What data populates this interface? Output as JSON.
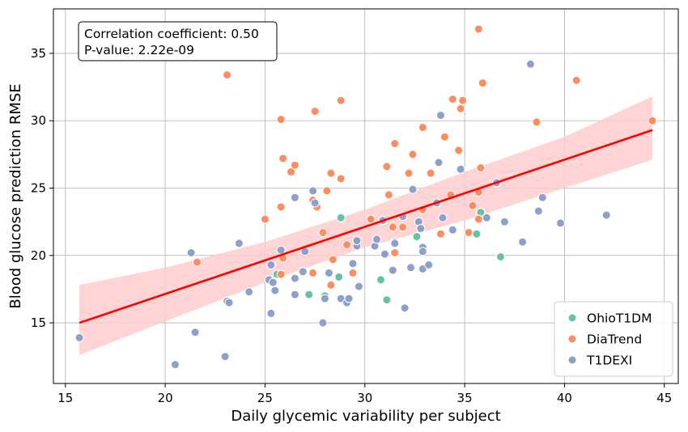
{
  "chart_data": {
    "type": "scatter",
    "xlabel": "Daily glycemic variability per subject",
    "ylabel": "Blood glucose prediction RMSE",
    "xlim": [
      14.4,
      45.7
    ],
    "ylim": [
      10.5,
      38.3
    ],
    "xticks": [
      15,
      20,
      25,
      30,
      35,
      40,
      45
    ],
    "yticks": [
      15,
      20,
      25,
      30,
      35
    ],
    "grid": true,
    "annotation": {
      "lines": [
        "Correlation coefficient: 0.50",
        "P-value: 2.22e-09"
      ],
      "placement": "top-left"
    },
    "legend": {
      "placement": "bottom-right"
    },
    "regression": {
      "color": "#ff0000",
      "ci_color": "#ffcccc",
      "line": [
        [
          15.7,
          15.0
        ],
        [
          44.4,
          29.3
        ]
      ],
      "ci_upper": [
        [
          15.7,
          17.8
        ],
        [
          20,
          19.1
        ],
        [
          25,
          21.0
        ],
        [
          30,
          23.4
        ],
        [
          35,
          26.2
        ],
        [
          40,
          28.8
        ],
        [
          44.4,
          31.8
        ]
      ],
      "ci_lower": [
        [
          15.7,
          12.6
        ],
        [
          20,
          15.1
        ],
        [
          25,
          18.0
        ],
        [
          30,
          20.6
        ],
        [
          35,
          22.6
        ],
        [
          40,
          25.0
        ],
        [
          44.4,
          27.1
        ]
      ]
    },
    "series": [
      {
        "name": "OhioT1DM",
        "color": "#66c2a5",
        "points": [
          [
            25.6,
            18.6
          ],
          [
            27.2,
            17.1
          ],
          [
            28.0,
            17.0
          ],
          [
            28.8,
            22.8
          ],
          [
            28.7,
            18.4
          ],
          [
            30.8,
            18.2
          ],
          [
            31.1,
            16.7
          ],
          [
            31.5,
            21.0
          ],
          [
            32.6,
            21.4
          ],
          [
            35.6,
            21.6
          ],
          [
            35.8,
            23.2
          ],
          [
            36.8,
            19.9
          ]
        ]
      },
      {
        "name": "DiaTrend",
        "color": "#fc8d62",
        "points": [
          [
            21.6,
            19.5
          ],
          [
            23.1,
            33.4
          ],
          [
            25.0,
            22.7
          ],
          [
            25.8,
            23.6
          ],
          [
            25.8,
            30.1
          ],
          [
            25.9,
            27.2
          ],
          [
            26.3,
            26.2
          ],
          [
            26.5,
            26.7
          ],
          [
            25.9,
            19.8
          ],
          [
            27.4,
            24.1
          ],
          [
            27.5,
            30.7
          ],
          [
            27.6,
            23.6
          ],
          [
            27.9,
            21.7
          ],
          [
            28.1,
            24.8
          ],
          [
            28.3,
            26.1
          ],
          [
            28.8,
            25.7
          ],
          [
            28.8,
            31.5
          ],
          [
            28.4,
            19.7
          ],
          [
            29.1,
            20.8
          ],
          [
            29.4,
            18.7
          ],
          [
            28.3,
            17.8
          ],
          [
            27.4,
            18.7
          ],
          [
            30.3,
            22.7
          ],
          [
            31.1,
            26.6
          ],
          [
            31.2,
            24.5
          ],
          [
            31.5,
            28.3
          ],
          [
            31.5,
            20.2
          ],
          [
            31.4,
            22.1
          ],
          [
            31.9,
            22.1
          ],
          [
            32.2,
            26.1
          ],
          [
            32.4,
            27.5
          ],
          [
            32.9,
            29.5
          ],
          [
            32.9,
            23.4
          ],
          [
            33.3,
            26.1
          ],
          [
            33.6,
            23.9
          ],
          [
            33.8,
            21.6
          ],
          [
            34.0,
            28.8
          ],
          [
            34.3,
            24.5
          ],
          [
            34.4,
            31.6
          ],
          [
            34.7,
            27.8
          ],
          [
            34.9,
            31.5
          ],
          [
            34.8,
            30.9
          ],
          [
            35.2,
            21.7
          ],
          [
            35.4,
            23.7
          ],
          [
            35.7,
            36.8
          ],
          [
            35.7,
            24.7
          ],
          [
            35.8,
            26.5
          ],
          [
            35.9,
            32.8
          ],
          [
            35.7,
            22.7
          ],
          [
            38.6,
            29.9
          ],
          [
            40.6,
            33.0
          ],
          [
            44.4,
            30.0
          ],
          [
            25.8,
            18.6
          ]
        ]
      },
      {
        "name": "T1DEXI",
        "color": "#8da0cb",
        "points": [
          [
            15.7,
            13.9
          ],
          [
            20.5,
            11.9
          ],
          [
            21.3,
            20.2
          ],
          [
            21.5,
            14.3
          ],
          [
            23.0,
            12.5
          ],
          [
            23.1,
            16.6
          ],
          [
            23.2,
            16.5
          ],
          [
            23.7,
            20.9
          ],
          [
            24.2,
            17.3
          ],
          [
            25.2,
            18.2
          ],
          [
            25.3,
            15.7
          ],
          [
            25.3,
            19.3
          ],
          [
            25.4,
            18.0
          ],
          [
            25.5,
            17.4
          ],
          [
            25.8,
            20.4
          ],
          [
            26.5,
            24.3
          ],
          [
            26.5,
            18.3
          ],
          [
            26.5,
            17.1
          ],
          [
            26.9,
            18.8
          ],
          [
            27.0,
            20.3
          ],
          [
            27.4,
            24.8
          ],
          [
            27.5,
            23.9
          ],
          [
            28.0,
            16.8
          ],
          [
            27.9,
            15.0
          ],
          [
            28.2,
            18.7
          ],
          [
            28.8,
            16.8
          ],
          [
            29.1,
            16.5
          ],
          [
            29.2,
            16.8
          ],
          [
            29.4,
            19.4
          ],
          [
            29.6,
            20.7
          ],
          [
            29.6,
            21.1
          ],
          [
            29.7,
            17.7
          ],
          [
            30.5,
            20.7
          ],
          [
            30.6,
            21.2
          ],
          [
            30.9,
            22.6
          ],
          [
            31.0,
            20.1
          ],
          [
            31.4,
            18.9
          ],
          [
            31.5,
            20.9
          ],
          [
            32.0,
            16.1
          ],
          [
            32.3,
            19.1
          ],
          [
            32.4,
            24.9
          ],
          [
            32.7,
            22.5
          ],
          [
            32.8,
            22.0
          ],
          [
            32.9,
            20.6
          ],
          [
            32.9,
            20.3
          ],
          [
            32.9,
            19.0
          ],
          [
            33.2,
            19.3
          ],
          [
            33.6,
            23.9
          ],
          [
            33.7,
            26.9
          ],
          [
            33.8,
            30.4
          ],
          [
            33.9,
            22.8
          ],
          [
            34.4,
            21.9
          ],
          [
            34.8,
            26.4
          ],
          [
            36.1,
            22.8
          ],
          [
            36.6,
            25.4
          ],
          [
            37.0,
            22.5
          ],
          [
            37.9,
            21.0
          ],
          [
            38.3,
            34.2
          ],
          [
            38.7,
            23.3
          ],
          [
            38.9,
            24.3
          ],
          [
            39.8,
            22.4
          ],
          [
            42.1,
            23.0
          ],
          [
            31.9,
            22.9
          ]
        ]
      }
    ]
  }
}
